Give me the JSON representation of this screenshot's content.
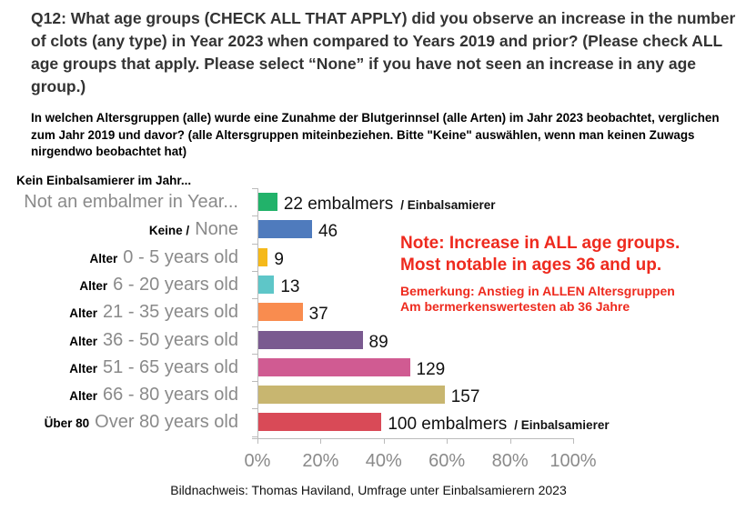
{
  "question": "Q12: What age groups (CHECK ALL THAT APPLY) did you observe an increase in the number of clots (any type) in Year 2023 when compared to Years 2019 and prior? (Please check ALL age groups that apply. Please select “None” if you have not seen an increase in any age group.)",
  "question_de": "In welchen Altersgruppen (alle) wurde eine Zunahme der Blutgerinnsel (alle Arten) im Jahr 2023 beobachtet, verglichen zum Jahr 2019 und davor? (alle Altersgruppen miteinbeziehen. Bitte \"Keine\" auswählen, wenn man keinen Zuwags nirgendwo beobachtet hat)",
  "note": [
    "Note:  Increase in ALL age groups.",
    "Most notable in ages 36 and up."
  ],
  "note_de": [
    "Bemerkung: Anstieg in ALLEN Altersgruppen",
    "Am bermerkenswertesten ab 36 Jahre"
  ],
  "credit": "Bildnachweis: Thomas Haviland, Umfrage unter Einbalsamierern 2023",
  "chart_data": {
    "type": "bar",
    "orientation": "horizontal",
    "top_label_de": "Kein Einbalsamierer im Jahr...",
    "categories": [
      "Not an embalmer in Year...",
      "None",
      "0 - 5 years old",
      "6 - 20 years old",
      "21 - 35 years old",
      "36 - 50 years old",
      "51 - 65 years old",
      "66 - 80 years old",
      "Over 80 years old"
    ],
    "categories_de": [
      "",
      "Keine /",
      "Alter",
      "Alter",
      "Alter",
      "Alter",
      "Alter",
      "Alter",
      "Über 80"
    ],
    "data_labels": [
      "22 embalmers",
      "46",
      "9",
      "13",
      "37",
      "89",
      "129",
      "157",
      "100 embalmers"
    ],
    "data_labels_de": [
      "/ Einbalsamierer",
      "",
      "",
      "",
      "",
      "",
      "",
      "",
      "/ Einbalsamierer"
    ],
    "counts": [
      22,
      46,
      9,
      13,
      37,
      89,
      129,
      157,
      100
    ],
    "values_percent": [
      6,
      17,
      3,
      5,
      14,
      33,
      48,
      59,
      39
    ],
    "colors": [
      "#22b26a",
      "#4f7bbd",
      "#f5b91a",
      "#5ec6c8",
      "#f98c4f",
      "#7a5a90",
      "#d05b92",
      "#c8b670",
      "#d94a57"
    ],
    "xlim": [
      0,
      100
    ],
    "xticks": [
      "0%",
      "20%",
      "40%",
      "60%",
      "80%",
      "100%"
    ],
    "grid": false
  }
}
